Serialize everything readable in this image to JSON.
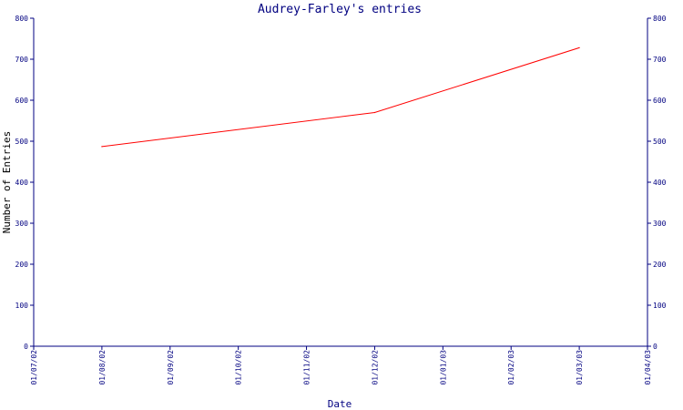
{
  "chart_data": {
    "type": "line",
    "title": "Audrey-Farley's entries",
    "xlabel": "Date",
    "ylabel": "Number of Entries",
    "x_ticks": [
      "01/07/02",
      "01/08/02",
      "01/09/02",
      "01/10/02",
      "01/11/02",
      "01/12/02",
      "01/01/03",
      "01/02/03",
      "01/03/03",
      "01/04/03"
    ],
    "y_ticks": [
      0,
      100,
      200,
      300,
      400,
      500,
      600,
      700,
      800
    ],
    "ylim": [
      0,
      800
    ],
    "xlim": [
      "01/07/02",
      "01/04/03"
    ],
    "grid": false,
    "right_axis_mirrored": true,
    "series": [
      {
        "color": "#ff0000",
        "points": [
          {
            "x": "01/08/02",
            "y": 487
          },
          {
            "x": "01/12/02",
            "y": 570
          },
          {
            "x": "01/03/03",
            "y": 728
          }
        ]
      }
    ],
    "colors": {
      "axis": "#000080",
      "line": "#ff0000"
    }
  }
}
